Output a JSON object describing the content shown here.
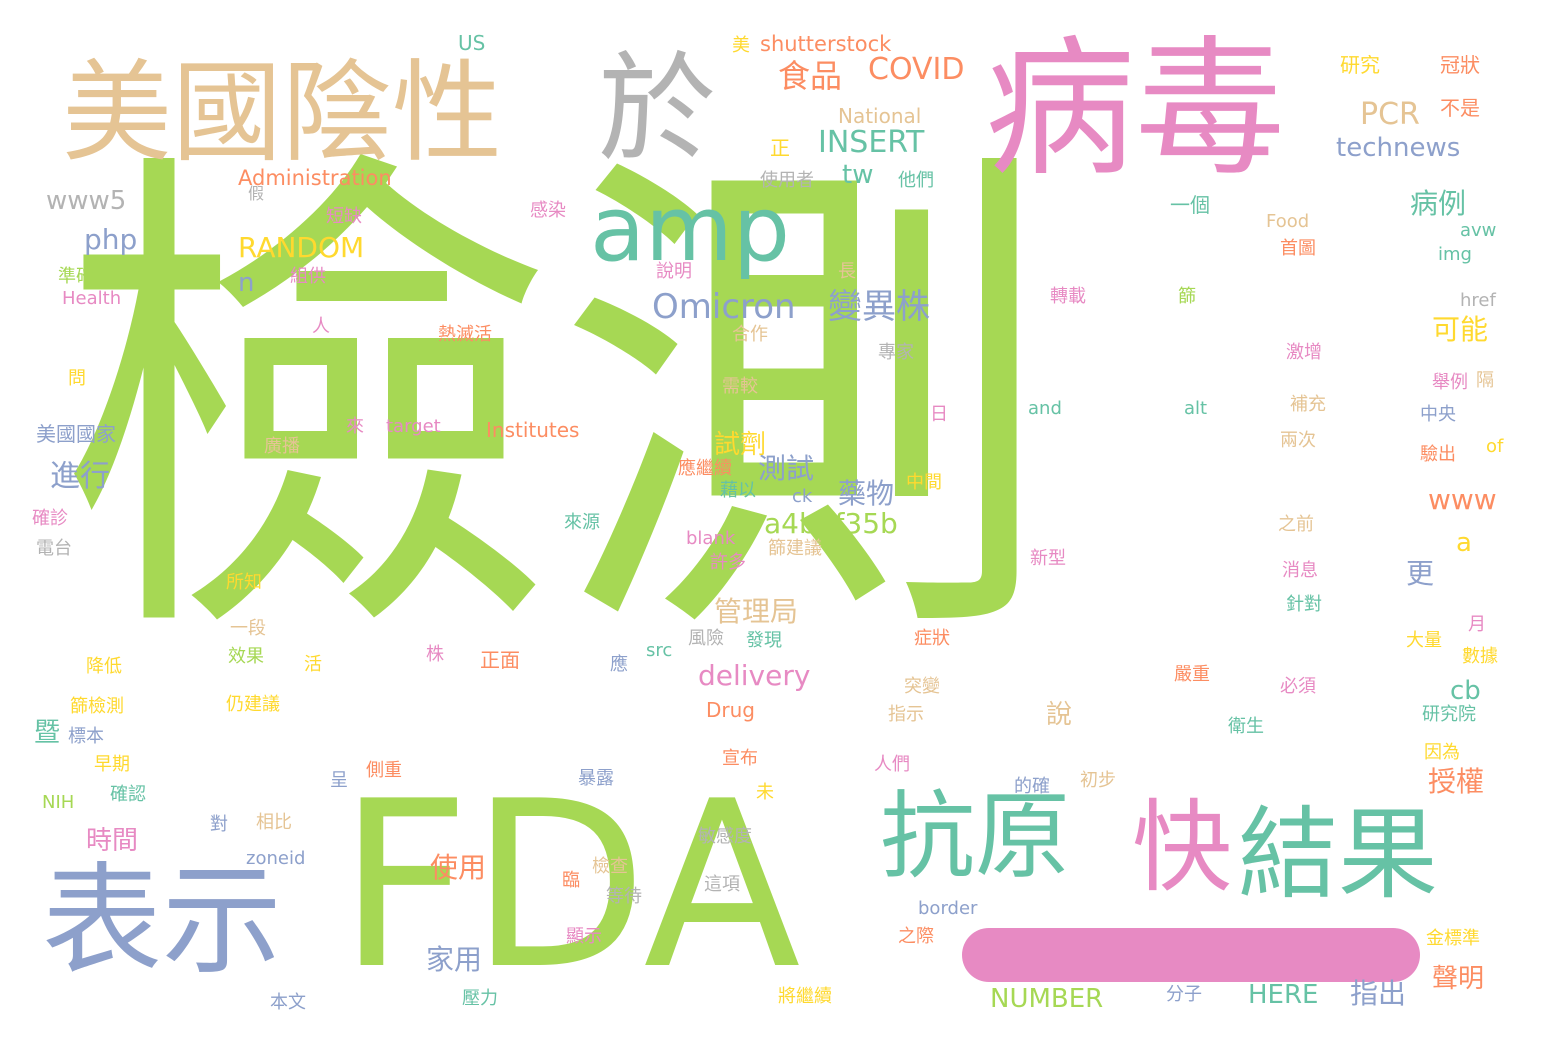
{
  "palette": {
    "green": "#a6d854",
    "teal": "#66c2a5",
    "pink": "#e78ac3",
    "blue": "#8da0cb",
    "orange": "#fc8d62",
    "yellow": "#ffd92f",
    "tan": "#e5c494",
    "gray": "#b3b3b3"
  },
  "words": [
    {
      "text": "檢測",
      "color": "green"
    },
    {
      "text": "病毒",
      "color": "pink"
    },
    {
      "text": "於",
      "color": "gray"
    },
    {
      "text": "美國陰性",
      "color": "tan"
    },
    {
      "text": "amp",
      "color": "teal"
    },
    {
      "text": "FDA",
      "color": "green"
    },
    {
      "text": "表示",
      "color": "blue"
    },
    {
      "text": "抗原",
      "color": "teal"
    },
    {
      "text": "快",
      "color": "pink"
    },
    {
      "text": "結果",
      "color": "teal"
    },
    {
      "text": "食品",
      "color": "orange"
    },
    {
      "text": "COVID",
      "color": "orange"
    },
    {
      "text": "shutterstock",
      "color": "orange"
    },
    {
      "text": "US",
      "color": "teal"
    },
    {
      "text": "美",
      "color": "yellow"
    },
    {
      "text": "研究",
      "color": "yellow"
    },
    {
      "text": "冠狀",
      "color": "orange"
    },
    {
      "text": "不是",
      "color": "orange"
    },
    {
      "text": "PCR",
      "color": "tan"
    },
    {
      "text": "National",
      "color": "tan"
    },
    {
      "text": "INSERT",
      "color": "teal"
    },
    {
      "text": "technews",
      "color": "blue"
    },
    {
      "text": "正",
      "color": "yellow"
    },
    {
      "text": "Administration",
      "color": "orange"
    },
    {
      "text": "tw",
      "color": "teal"
    },
    {
      "text": "使用者",
      "color": "gray"
    },
    {
      "text": "他們",
      "color": "teal"
    },
    {
      "text": "www5",
      "color": "gray"
    },
    {
      "text": "假",
      "color": "gray"
    },
    {
      "text": "短缺",
      "color": "pink"
    },
    {
      "text": "感染",
      "color": "pink"
    },
    {
      "text": "一個",
      "color": "teal"
    },
    {
      "text": "病例",
      "color": "teal"
    },
    {
      "text": "Food",
      "color": "tan"
    },
    {
      "text": "avw",
      "color": "teal"
    },
    {
      "text": "php",
      "color": "blue"
    },
    {
      "text": "RANDOM",
      "color": "yellow"
    },
    {
      "text": "首圖",
      "color": "orange"
    },
    {
      "text": "img",
      "color": "teal"
    },
    {
      "text": "準確",
      "color": "green"
    },
    {
      "text": "組供",
      "color": "pink"
    },
    {
      "text": "說明",
      "color": "pink"
    },
    {
      "text": "長",
      "color": "tan"
    },
    {
      "text": "n",
      "color": "blue"
    },
    {
      "text": "Health",
      "color": "pink"
    },
    {
      "text": "轉載",
      "color": "pink"
    },
    {
      "text": "篩",
      "color": "green"
    },
    {
      "text": "href",
      "color": "gray"
    },
    {
      "text": "Omicron",
      "color": "blue"
    },
    {
      "text": "變異株",
      "color": "blue"
    },
    {
      "text": "可能",
      "color": "yellow"
    },
    {
      "text": "人",
      "color": "pink"
    },
    {
      "text": "熱滅活",
      "color": "orange"
    },
    {
      "text": "合作",
      "color": "tan"
    },
    {
      "text": "專家",
      "color": "gray"
    },
    {
      "text": "激增",
      "color": "pink"
    },
    {
      "text": "問",
      "color": "yellow"
    },
    {
      "text": "需較",
      "color": "tan"
    },
    {
      "text": "補充",
      "color": "tan"
    },
    {
      "text": "舉例",
      "color": "pink"
    },
    {
      "text": "隔",
      "color": "tan"
    },
    {
      "text": "美國國家",
      "color": "blue"
    },
    {
      "text": "來",
      "color": "pink"
    },
    {
      "text": "target",
      "color": "pink"
    },
    {
      "text": "Institutes",
      "color": "orange"
    },
    {
      "text": "日",
      "color": "pink"
    },
    {
      "text": "and",
      "color": "teal"
    },
    {
      "text": "alt",
      "color": "teal"
    },
    {
      "text": "中央",
      "color": "blue"
    },
    {
      "text": "廣播",
      "color": "tan"
    },
    {
      "text": "試劑",
      "color": "yellow"
    },
    {
      "text": "兩次",
      "color": "tan"
    },
    {
      "text": "of",
      "color": "yellow"
    },
    {
      "text": "進行",
      "color": "blue"
    },
    {
      "text": "測試",
      "color": "blue"
    },
    {
      "text": "應繼續",
      "color": "orange"
    },
    {
      "text": "藥物",
      "color": "blue"
    },
    {
      "text": "中間",
      "color": "yellow"
    },
    {
      "text": "驗出",
      "color": "orange"
    },
    {
      "text": "藉以",
      "color": "teal"
    },
    {
      "text": "ck",
      "color": "blue"
    },
    {
      "text": "www",
      "color": "orange"
    },
    {
      "text": "確診",
      "color": "pink"
    },
    {
      "text": "a4b3f35b",
      "color": "green"
    },
    {
      "text": "來源",
      "color": "teal"
    },
    {
      "text": "之前",
      "color": "tan"
    },
    {
      "text": "電台",
      "color": "gray"
    },
    {
      "text": "blank",
      "color": "pink"
    },
    {
      "text": "篩建議",
      "color": "tan"
    },
    {
      "text": "新型",
      "color": "pink"
    },
    {
      "text": "a",
      "color": "yellow"
    },
    {
      "text": "許多",
      "color": "pink"
    },
    {
      "text": "消息",
      "color": "pink"
    },
    {
      "text": "更",
      "color": "blue"
    },
    {
      "text": "所知",
      "color": "yellow"
    },
    {
      "text": "管理局",
      "color": "tan"
    },
    {
      "text": "針對",
      "color": "teal"
    },
    {
      "text": "一段",
      "color": "tan"
    },
    {
      "text": "風險",
      "color": "gray"
    },
    {
      "text": "發現",
      "color": "teal"
    },
    {
      "text": "症狀",
      "color": "orange"
    },
    {
      "text": "月",
      "color": "pink"
    },
    {
      "text": "大量",
      "color": "yellow"
    },
    {
      "text": "效果",
      "color": "green"
    },
    {
      "text": "株",
      "color": "pink"
    },
    {
      "text": "src",
      "color": "teal"
    },
    {
      "text": "數據",
      "color": "yellow"
    },
    {
      "text": "降低",
      "color": "yellow"
    },
    {
      "text": "活",
      "color": "yellow"
    },
    {
      "text": "正面",
      "color": "orange"
    },
    {
      "text": "應",
      "color": "blue"
    },
    {
      "text": "delivery",
      "color": "pink"
    },
    {
      "text": "cb",
      "color": "teal"
    },
    {
      "text": "嚴重",
      "color": "orange"
    },
    {
      "text": "必須",
      "color": "pink"
    },
    {
      "text": "篩檢測",
      "color": "yellow"
    },
    {
      "text": "仍建議",
      "color": "yellow"
    },
    {
      "text": "突變",
      "color": "tan"
    },
    {
      "text": "研究院",
      "color": "teal"
    },
    {
      "text": "暨",
      "color": "teal"
    },
    {
      "text": "標本",
      "color": "blue"
    },
    {
      "text": "Drug",
      "color": "orange"
    },
    {
      "text": "指示",
      "color": "tan"
    },
    {
      "text": "說",
      "color": "tan"
    },
    {
      "text": "衛生",
      "color": "teal"
    },
    {
      "text": "授權",
      "color": "orange"
    },
    {
      "text": "因為",
      "color": "yellow"
    },
    {
      "text": "早期",
      "color": "yellow"
    },
    {
      "text": "側重",
      "color": "orange"
    },
    {
      "text": "宣布",
      "color": "orange"
    },
    {
      "text": "人們",
      "color": "pink"
    },
    {
      "text": "NIH",
      "color": "green"
    },
    {
      "text": "確認",
      "color": "teal"
    },
    {
      "text": "呈",
      "color": "blue"
    },
    {
      "text": "暴露",
      "color": "blue"
    },
    {
      "text": "未",
      "color": "yellow"
    },
    {
      "text": "的確",
      "color": "blue"
    },
    {
      "text": "初步",
      "color": "tan"
    },
    {
      "text": "時間",
      "color": "pink"
    },
    {
      "text": "對",
      "color": "blue"
    },
    {
      "text": "相比",
      "color": "tan"
    },
    {
      "text": "敏感度",
      "color": "gray"
    },
    {
      "text": "zoneid",
      "color": "blue"
    },
    {
      "text": "使用",
      "color": "orange"
    },
    {
      "text": "臨",
      "color": "orange"
    },
    {
      "text": "檢查",
      "color": "tan"
    },
    {
      "text": "這項",
      "color": "gray"
    },
    {
      "text": "等待",
      "color": "gray"
    },
    {
      "text": "border",
      "color": "blue"
    },
    {
      "text": "顯示",
      "color": "pink"
    },
    {
      "text": "之際",
      "color": "orange"
    },
    {
      "text": "金標準",
      "color": "yellow"
    },
    {
      "text": "家用",
      "color": "blue"
    },
    {
      "text": "聲明",
      "color": "orange"
    },
    {
      "text": "NUMBER",
      "color": "green"
    },
    {
      "text": "分子",
      "color": "blue"
    },
    {
      "text": "HERE",
      "color": "teal"
    },
    {
      "text": "指出",
      "color": "blue"
    },
    {
      "text": "壓力",
      "color": "teal"
    },
    {
      "text": "將繼續",
      "color": "yellow"
    },
    {
      "text": "本文",
      "color": "blue"
    }
  ]
}
